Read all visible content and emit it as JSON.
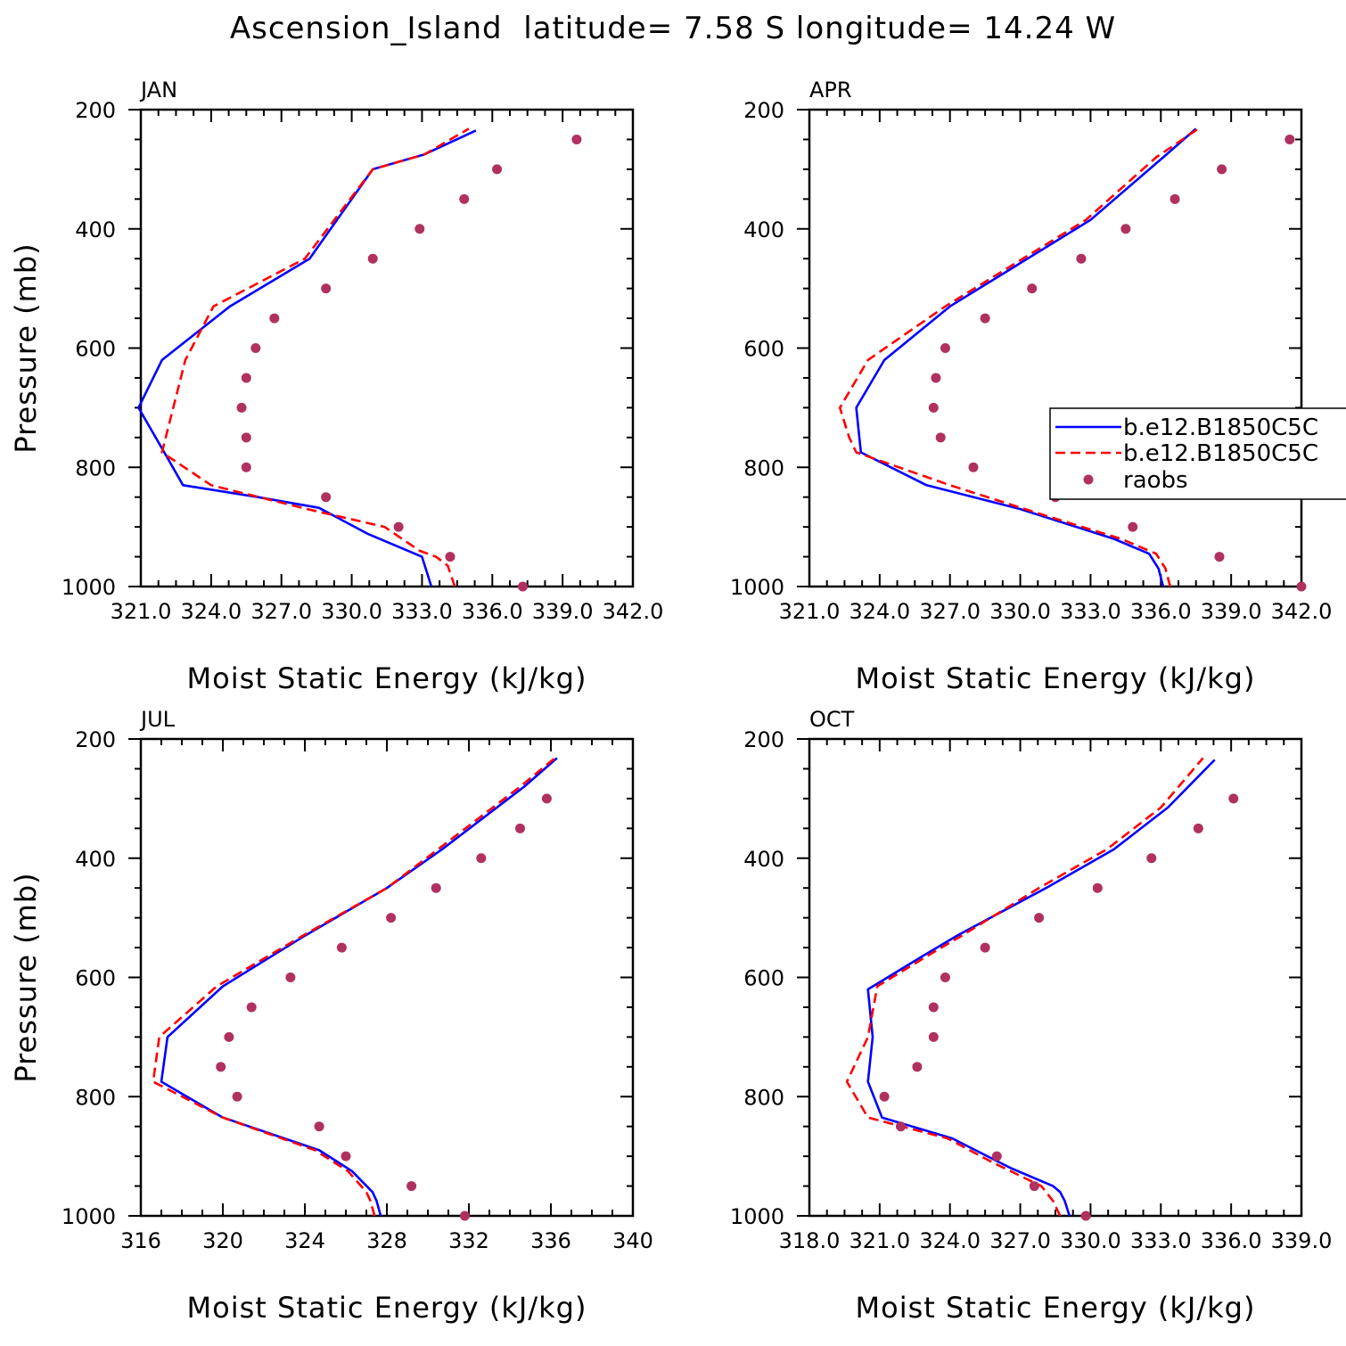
{
  "title": "Ascension_Island  latitude= 7.58 S longitude= 14.24 W",
  "colors": {
    "model1": "#0000ff",
    "model2": "#ff0000",
    "raobs": "#b03060"
  },
  "legend": {
    "entries": [
      "b.e12.B1850C5C",
      "b.e12.B1850C5C",
      "raobs"
    ],
    "placement": "right of APR panel"
  },
  "chart_data": [
    {
      "panel": "JAN",
      "type": "line",
      "xlabel": "Moist Static Energy (kJ/kg)",
      "ylabel": "Pressure (mb)",
      "xlim": [
        321.0,
        342.0
      ],
      "ylim": [
        1000,
        200
      ],
      "xticks": [
        321,
        324,
        327,
        330,
        333,
        336,
        339,
        342
      ],
      "xtick_labels": [
        "321.0",
        "324.0",
        "327.0",
        "330.0",
        "333.0",
        "336.0",
        "339.0",
        "342.0"
      ],
      "yticks": [
        200,
        400,
        600,
        800,
        1000
      ],
      "ytick_labels": [
        "200",
        "400",
        "600",
        "800",
        "1000"
      ],
      "series": [
        {
          "name": "b.e12.B1850C5C",
          "style": "solid",
          "points": [
            [
              333.4,
              1000
            ],
            [
              333.2,
              975
            ],
            [
              333.0,
              950
            ],
            [
              330.7,
              912
            ],
            [
              328.6,
              868
            ],
            [
              326.0,
              850
            ],
            [
              322.8,
              830
            ],
            [
              322.0,
              775
            ],
            [
              320.9,
              700
            ],
            [
              321.9,
              620
            ],
            [
              324.8,
              530
            ],
            [
              328.2,
              450
            ],
            [
              330.9,
              300
            ],
            [
              333.1,
              275
            ],
            [
              335.3,
              235
            ]
          ]
        },
        {
          "name": "b.e12.B1850C5C",
          "style": "dashed",
          "points": [
            [
              334.4,
              1000
            ],
            [
              334.1,
              965
            ],
            [
              333.6,
              950
            ],
            [
              332.9,
              940
            ],
            [
              331.4,
              900
            ],
            [
              328.1,
              870
            ],
            [
              324.0,
              830
            ],
            [
              321.9,
              775
            ],
            [
              322.9,
              620
            ],
            [
              324.1,
              530
            ],
            [
              328.0,
              450
            ],
            [
              330.9,
              300
            ],
            [
              333.1,
              275
            ],
            [
              335.0,
              232
            ]
          ]
        },
        {
          "name": "raobs",
          "style": "dots",
          "points": [
            [
              337.3,
              1000
            ],
            [
              334.2,
              950
            ],
            [
              332.0,
              900
            ],
            [
              328.9,
              850
            ],
            [
              325.5,
              800
            ],
            [
              325.5,
              750
            ],
            [
              325.3,
              700
            ],
            [
              325.5,
              650
            ],
            [
              325.9,
              600
            ],
            [
              326.7,
              550
            ],
            [
              328.9,
              500
            ],
            [
              330.9,
              450
            ],
            [
              332.9,
              400
            ],
            [
              334.8,
              350
            ],
            [
              336.2,
              300
            ],
            [
              339.6,
              250
            ]
          ]
        }
      ]
    },
    {
      "panel": "APR",
      "type": "line",
      "xlabel": "Moist Static Energy (kJ/kg)",
      "ylabel": "",
      "xlim": [
        321.0,
        342.0
      ],
      "ylim": [
        1000,
        200
      ],
      "xticks": [
        321,
        324,
        327,
        330,
        333,
        336,
        339,
        342
      ],
      "xtick_labels": [
        "321.0",
        "324.0",
        "327.0",
        "330.0",
        "333.0",
        "336.0",
        "339.0",
        "342.0"
      ],
      "yticks": [
        200,
        400,
        600,
        800,
        1000
      ],
      "ytick_labels": [
        "200",
        "400",
        "600",
        "800",
        "1000"
      ],
      "series": [
        {
          "name": "b.e12.B1850C5C",
          "style": "solid",
          "points": [
            [
              336.1,
              1000
            ],
            [
              335.9,
              970
            ],
            [
              335.5,
              945
            ],
            [
              334.0,
              920
            ],
            [
              330.0,
              870
            ],
            [
              326.0,
              830
            ],
            [
              323.2,
              775
            ],
            [
              323.0,
              700
            ],
            [
              324.2,
              620
            ],
            [
              327.0,
              530
            ],
            [
              333.0,
              385
            ],
            [
              336.1,
              280
            ],
            [
              337.5,
              232
            ]
          ]
        },
        {
          "name": "b.e12.B1850C5C",
          "style": "dashed",
          "points": [
            [
              336.4,
              1000
            ],
            [
              336.2,
              970
            ],
            [
              335.8,
              945
            ],
            [
              334.3,
              920
            ],
            [
              331.0,
              880
            ],
            [
              327.0,
              830
            ],
            [
              323.0,
              775
            ],
            [
              322.7,
              750
            ],
            [
              322.3,
              700
            ],
            [
              323.5,
              620
            ],
            [
              326.8,
              530
            ],
            [
              332.8,
              385
            ],
            [
              335.8,
              280
            ],
            [
              337.6,
              232
            ]
          ]
        },
        {
          "name": "raobs",
          "style": "dots",
          "points": [
            [
              342.0,
              1000
            ],
            [
              338.5,
              950
            ],
            [
              334.8,
              900
            ],
            [
              331.5,
              850
            ],
            [
              328.0,
              800
            ],
            [
              326.6,
              750
            ],
            [
              326.3,
              700
            ],
            [
              326.4,
              650
            ],
            [
              326.8,
              600
            ],
            [
              328.5,
              550
            ],
            [
              330.5,
              500
            ],
            [
              332.6,
              450
            ],
            [
              334.5,
              400
            ],
            [
              336.6,
              350
            ],
            [
              338.6,
              300
            ],
            [
              341.5,
              250
            ]
          ]
        }
      ]
    },
    {
      "panel": "JUL",
      "type": "line",
      "xlabel": "Moist Static Energy (kJ/kg)",
      "ylabel": "Pressure (mb)",
      "xlim": [
        316,
        340
      ],
      "ylim": [
        1000,
        200
      ],
      "xticks": [
        316,
        320,
        324,
        328,
        332,
        336,
        340
      ],
      "xtick_labels": [
        "316",
        "320",
        "324",
        "328",
        "332",
        "336",
        "340"
      ],
      "yticks": [
        200,
        400,
        600,
        800,
        1000
      ],
      "ytick_labels": [
        "200",
        "400",
        "600",
        "800",
        "1000"
      ],
      "series": [
        {
          "name": "b.e12.B1850C5C",
          "style": "solid",
          "points": [
            [
              327.7,
              1000
            ],
            [
              327.5,
              975
            ],
            [
              327.3,
              960
            ],
            [
              326.3,
              925
            ],
            [
              324.7,
              890
            ],
            [
              320.0,
              835
            ],
            [
              317.0,
              775
            ],
            [
              317.3,
              700
            ],
            [
              320.0,
              615
            ],
            [
              324.0,
              530
            ],
            [
              328.0,
              450
            ],
            [
              330.7,
              385
            ],
            [
              334.7,
              280
            ],
            [
              336.3,
              232
            ]
          ]
        },
        {
          "name": "b.e12.B1850C5C",
          "style": "dashed",
          "points": [
            [
              327.4,
              1000
            ],
            [
              327.2,
              975
            ],
            [
              327.0,
              960
            ],
            [
              326.1,
              925
            ],
            [
              324.5,
              890
            ],
            [
              320.0,
              835
            ],
            [
              316.6,
              775
            ],
            [
              316.9,
              700
            ],
            [
              319.7,
              615
            ],
            [
              323.9,
              530
            ],
            [
              328.0,
              450
            ],
            [
              330.5,
              385
            ],
            [
              334.5,
              280
            ],
            [
              336.2,
              232
            ]
          ]
        },
        {
          "name": "raobs",
          "style": "dots",
          "points": [
            [
              331.8,
              1000
            ],
            [
              329.2,
              950
            ],
            [
              326.0,
              900
            ],
            [
              324.7,
              850
            ],
            [
              320.7,
              800
            ],
            [
              319.9,
              750
            ],
            [
              320.3,
              700
            ],
            [
              321.4,
              650
            ],
            [
              323.3,
              600
            ],
            [
              325.8,
              550
            ],
            [
              328.2,
              500
            ],
            [
              330.4,
              450
            ],
            [
              332.6,
              400
            ],
            [
              334.5,
              350
            ],
            [
              335.8,
              300
            ]
          ]
        }
      ]
    },
    {
      "panel": "OCT",
      "type": "line",
      "xlabel": "Moist Static Energy (kJ/kg)",
      "ylabel": "",
      "xlim": [
        318.0,
        339.0
      ],
      "ylim": [
        1000,
        200
      ],
      "xticks": [
        318,
        321,
        324,
        327,
        330,
        333,
        336,
        339
      ],
      "xtick_labels": [
        "318.0",
        "321.0",
        "324.0",
        "327.0",
        "330.0",
        "333.0",
        "336.0",
        "339.0"
      ],
      "yticks": [
        200,
        400,
        600,
        800,
        1000
      ],
      "ytick_labels": [
        "200",
        "400",
        "600",
        "800",
        "1000"
      ],
      "series": [
        {
          "name": "b.e12.B1850C5C",
          "style": "solid",
          "points": [
            [
              329.1,
              1000
            ],
            [
              328.9,
              975
            ],
            [
              328.7,
              960
            ],
            [
              328.4,
              950
            ],
            [
              326.6,
              920
            ],
            [
              324.1,
              870
            ],
            [
              321.1,
              835
            ],
            [
              320.5,
              775
            ],
            [
              320.7,
              700
            ],
            [
              320.5,
              620
            ],
            [
              322.8,
              565
            ],
            [
              324.3,
              530
            ],
            [
              328.1,
              450
            ],
            [
              331.0,
              385
            ],
            [
              333.3,
              315
            ],
            [
              335.3,
              235
            ]
          ]
        },
        {
          "name": "b.e12.B1850C5C",
          "style": "dashed",
          "points": [
            [
              328.7,
              1000
            ],
            [
              328.4,
              975
            ],
            [
              328.1,
              960
            ],
            [
              327.9,
              950
            ],
            [
              325.8,
              910
            ],
            [
              323.9,
              870
            ],
            [
              320.5,
              835
            ],
            [
              319.6,
              775
            ],
            [
              320.5,
              700
            ],
            [
              320.9,
              615
            ],
            [
              323.2,
              560
            ],
            [
              324.5,
              530
            ],
            [
              327.8,
              450
            ],
            [
              330.7,
              385
            ],
            [
              333.0,
              315
            ],
            [
              334.8,
              232
            ]
          ]
        },
        {
          "name": "raobs",
          "style": "dots",
          "points": [
            [
              329.8,
              1000
            ],
            [
              327.6,
              950
            ],
            [
              326.0,
              900
            ],
            [
              321.9,
              850
            ],
            [
              321.2,
              800
            ],
            [
              322.6,
              750
            ],
            [
              323.3,
              700
            ],
            [
              323.3,
              650
            ],
            [
              323.8,
              600
            ],
            [
              325.5,
              550
            ],
            [
              327.8,
              500
            ],
            [
              330.3,
              450
            ],
            [
              332.6,
              400
            ],
            [
              334.6,
              350
            ],
            [
              336.1,
              300
            ]
          ]
        }
      ]
    }
  ]
}
